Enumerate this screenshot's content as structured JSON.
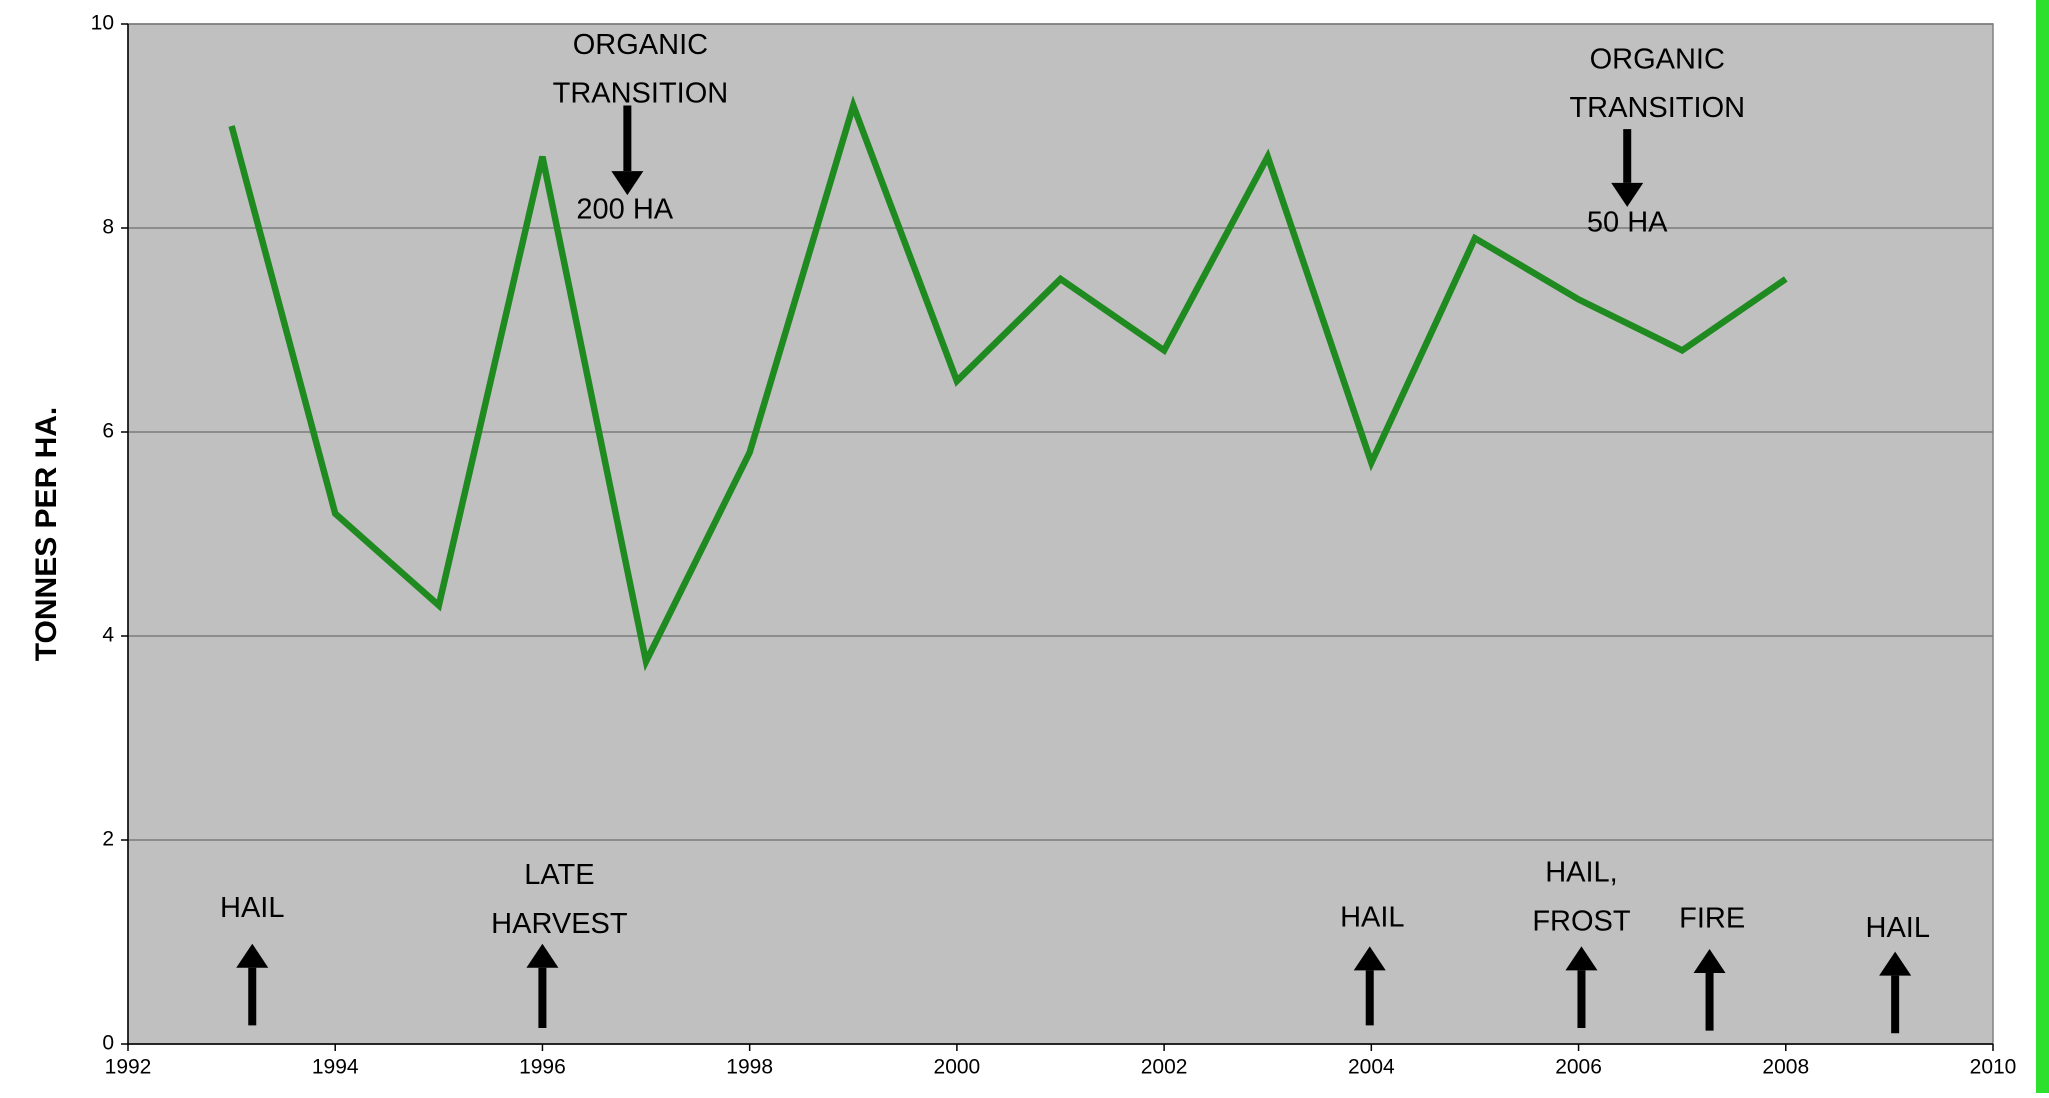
{
  "chart_data": {
    "type": "line",
    "y_label": "TONNES PER HA.",
    "x": [
      1993,
      1994,
      1995,
      1996,
      1997,
      1998,
      1999,
      2000,
      2001,
      2002,
      2003,
      2004,
      2005,
      2006,
      2007,
      2008
    ],
    "series": [
      {
        "color": "#1f8a1f",
        "values": [
          9.0,
          5.2,
          4.3,
          8.7,
          3.75,
          5.8,
          9.2,
          6.5,
          7.5,
          6.8,
          8.7,
          5.7,
          7.9,
          7.3,
          6.8,
          7.5
        ]
      }
    ],
    "xlim": [
      1992,
      2010
    ],
    "xticks": [
      1992,
      1994,
      1996,
      1998,
      2000,
      2002,
      2004,
      2006,
      2008,
      2010
    ],
    "ylim": [
      0,
      10
    ],
    "yticks": [
      0,
      2,
      4,
      6,
      8,
      10
    ],
    "grid": true,
    "annotations": [
      {
        "lines": [
          "ORGANIC",
          "TRANSITION"
        ],
        "note": "200 HA",
        "arrow": "down"
      },
      {
        "lines": [
          "ORGANIC",
          "TRANSITION"
        ],
        "note": "50 HA",
        "arrow": "down"
      },
      {
        "lines": [
          "HAIL"
        ],
        "arrow": "up"
      },
      {
        "lines": [
          "LATE",
          "HARVEST"
        ],
        "arrow": "up"
      },
      {
        "lines": [
          "HAIL"
        ],
        "arrow": "up"
      },
      {
        "lines": [
          "HAIL,",
          "FROST"
        ],
        "arrow": "up"
      },
      {
        "lines": [
          "FIRE"
        ],
        "arrow": "up"
      },
      {
        "lines": [
          "HAIL"
        ],
        "arrow": "up"
      }
    ]
  }
}
